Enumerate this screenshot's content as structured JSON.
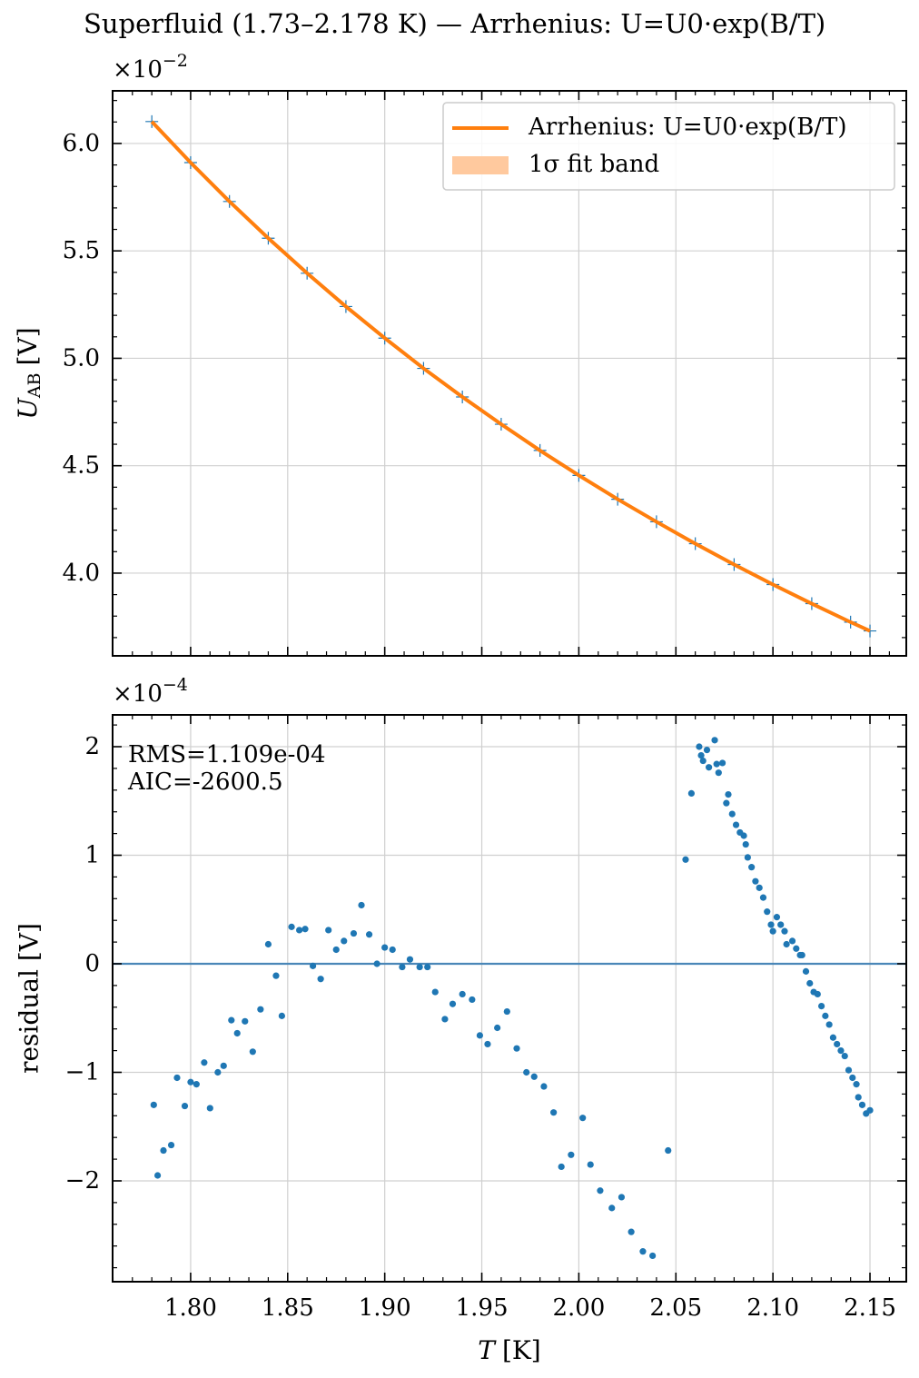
{
  "chart_data": [
    {
      "type": "scatter",
      "title": "Superfluid (1.73–2.178 K) — Arrhenius: U=U0·exp(B/T)",
      "ylabel": {
        "symbol": "U",
        "subscript": "AB",
        "unit": "[V]"
      },
      "y_offset": {
        "base": "×10",
        "exponent": "−2"
      },
      "xlim": [
        1.7598,
        2.1687
      ],
      "ylim": [
        3.615,
        6.245
      ],
      "xticks": [
        1.8,
        1.85,
        1.9,
        1.95,
        2.0,
        2.05,
        2.1,
        2.15
      ],
      "yticks": [
        {
          "value": 4,
          "label": "4.0"
        },
        4.5,
        {
          "value": 5,
          "label": "5.0"
        },
        5.5,
        {
          "value": 6,
          "label": "6.0"
        }
      ],
      "grid": true,
      "legend": "upper right",
      "series": [
        {
          "type": "scatter",
          "color": "#1f77b4",
          "x": [
            1.78,
            1.8,
            1.82,
            1.84,
            1.86,
            1.88,
            1.9,
            1.92,
            1.94,
            1.96,
            1.98,
            2.0,
            2.02,
            2.04,
            2.06,
            2.08,
            2.1,
            2.12,
            2.14,
            2.15
          ],
          "values": [
            6.102,
            5.911,
            5.73,
            5.559,
            5.396,
            5.241,
            5.094,
            4.953,
            4.82,
            4.693,
            4.571,
            4.455,
            4.344,
            4.239,
            4.137,
            4.04,
            3.947,
            3.858,
            3.772,
            3.731
          ]
        },
        {
          "type": "line",
          "name": "Arrhenius: U=U0·exp(B/T)",
          "color": "#ff7f0e",
          "x": [
            1.78,
            1.8,
            1.82,
            1.84,
            1.86,
            1.88,
            1.9,
            1.92,
            1.94,
            1.96,
            1.98,
            2.0,
            2.02,
            2.04,
            2.06,
            2.08,
            2.1,
            2.12,
            2.14,
            2.15
          ],
          "values": [
            6.102,
            5.911,
            5.73,
            5.559,
            5.396,
            5.241,
            5.094,
            4.953,
            4.82,
            4.693,
            4.571,
            4.455,
            4.344,
            4.239,
            4.137,
            4.04,
            3.947,
            3.858,
            3.772,
            3.731
          ]
        },
        {
          "type": "band",
          "name": "1σ fit band",
          "color": "#ffc99e"
        }
      ]
    },
    {
      "type": "scatter",
      "ylabel": "residual [V]",
      "xlabel": {
        "symbol": "T",
        "unit": "[K]"
      },
      "y_offset": {
        "base": "×10",
        "exponent": "−4"
      },
      "annotations": [
        "RMS=1.109e-04",
        "AIC=-2600.5"
      ],
      "xlim": [
        1.7598,
        2.1687
      ],
      "ylim": [
        -2.929,
        2.293
      ],
      "xticks": [
        {
          "value": 1.8,
          "label": "1.80"
        },
        {
          "value": 1.85,
          "label": "1.85"
        },
        {
          "value": 1.9,
          "label": "1.90"
        },
        {
          "value": 1.95,
          "label": "1.95"
        },
        {
          "value": 2.0,
          "label": "2.00"
        },
        {
          "value": 2.05,
          "label": "2.05"
        },
        {
          "value": 2.1,
          "label": "2.10"
        },
        {
          "value": 2.15,
          "label": "2.15"
        }
      ],
      "yticks": [
        {
          "value": -2,
          "label": "−2"
        },
        {
          "value": -1,
          "label": "−1"
        },
        0,
        1,
        2
      ],
      "grid": true,
      "reference_line": 0,
      "reference_color": "#4a87b8",
      "series": [
        {
          "type": "scatter",
          "color": "#1f77b4",
          "x": [
            1.781,
            1.783,
            1.786,
            1.79,
            1.793,
            1.797,
            1.8,
            1.803,
            1.807,
            1.81,
            1.814,
            1.817,
            1.821,
            1.824,
            1.828,
            1.832,
            1.836,
            1.84,
            1.844,
            1.847,
            1.852,
            1.856,
            1.859,
            1.863,
            1.867,
            1.871,
            1.875,
            1.879,
            1.884,
            1.888,
            1.892,
            1.896,
            1.9,
            1.904,
            1.909,
            1.913,
            1.918,
            1.922,
            1.926,
            1.931,
            1.935,
            1.94,
            1.945,
            1.949,
            1.953,
            1.958,
            1.963,
            1.968,
            1.973,
            1.977,
            1.982,
            1.987,
            1.991,
            1.996,
            2.002,
            2.006,
            2.011,
            2.017,
            2.022,
            2.027,
            2.033,
            2.038,
            2.046,
            2.055,
            2.058,
            2.062,
            2.063,
            2.064,
            2.066,
            2.067,
            2.07,
            2.071,
            2.072,
            2.074,
            2.076,
            2.077,
            2.079,
            2.081,
            2.083,
            2.085,
            2.086,
            2.087,
            2.089,
            2.091,
            2.093,
            2.095,
            2.097,
            2.099,
            2.1,
            2.102,
            2.104,
            2.106,
            2.107,
            2.11,
            2.112,
            2.114,
            2.115,
            2.117,
            2.119,
            2.121,
            2.123,
            2.125,
            2.127,
            2.129,
            2.131,
            2.133,
            2.135,
            2.137,
            2.139,
            2.141,
            2.143,
            2.144,
            2.146,
            2.148,
            2.15
          ],
          "values": [
            -1.3,
            -1.95,
            -1.72,
            -1.67,
            -1.05,
            -1.31,
            -1.09,
            -1.11,
            -0.91,
            -1.33,
            -1.0,
            -0.94,
            -0.52,
            -0.64,
            -0.53,
            -0.81,
            -0.42,
            0.18,
            -0.11,
            -0.48,
            0.34,
            0.31,
            0.32,
            -0.02,
            -0.14,
            0.31,
            0.13,
            0.21,
            0.28,
            0.54,
            0.27,
            0.0,
            0.15,
            0.13,
            -0.03,
            0.04,
            -0.03,
            -0.03,
            -0.26,
            -0.51,
            -0.37,
            -0.28,
            -0.33,
            -0.66,
            -0.74,
            -0.59,
            -0.44,
            -0.78,
            -1.0,
            -1.04,
            -1.13,
            -1.37,
            -1.87,
            -1.76,
            -1.42,
            -1.85,
            -2.09,
            -2.25,
            -2.15,
            -2.47,
            -2.65,
            -2.69,
            -1.72,
            0.96,
            1.57,
            2.0,
            1.92,
            1.87,
            1.97,
            1.81,
            2.06,
            1.84,
            1.76,
            1.85,
            1.48,
            1.56,
            1.38,
            1.28,
            1.21,
            1.18,
            1.1,
            0.98,
            0.89,
            0.76,
            0.7,
            0.61,
            0.48,
            0.36,
            0.3,
            0.43,
            0.36,
            0.3,
            0.18,
            0.21,
            0.14,
            0.08,
            0.08,
            -0.07,
            -0.18,
            -0.26,
            -0.28,
            -0.39,
            -0.48,
            -0.56,
            -0.68,
            -0.74,
            -0.8,
            -0.85,
            -0.98,
            -1.05,
            -1.11,
            -1.23,
            -1.3,
            -1.38,
            -1.35
          ]
        }
      ]
    }
  ]
}
